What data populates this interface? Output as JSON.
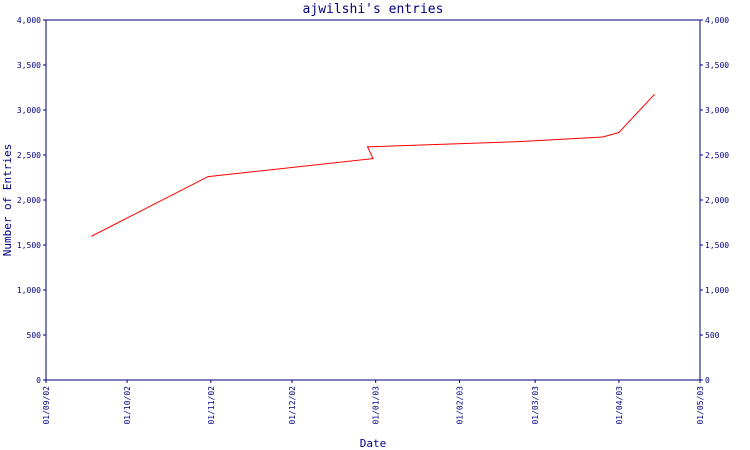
{
  "chart_data": {
    "type": "line",
    "title": "ajwilshi's entries",
    "xlabel": "Date",
    "ylabel": "Number of Entries",
    "ylim": [
      0,
      4000
    ],
    "y_ticks": [
      0,
      500,
      1000,
      1500,
      2000,
      2500,
      3000,
      3500,
      4000
    ],
    "y_tick_labels": [
      "0",
      "500",
      "1,000",
      "1,500",
      "2,000",
      "2,500",
      "3,000",
      "3,500",
      "4,000"
    ],
    "x_tick_labels": [
      "01/09/02",
      "01/10/02",
      "01/11/02",
      "01/12/02",
      "01/01/03",
      "01/02/03",
      "01/03/03",
      "01/04/03",
      "01/05/03"
    ],
    "grid": false,
    "series": [
      {
        "color": "#ff0000",
        "x": [
          "2002-09-18",
          "2002-10-31",
          "2002-12-31",
          "2002-12-29",
          "2003-02-24",
          "2003-03-26",
          "2003-04-01",
          "2003-04-14"
        ],
        "y": [
          1600,
          2260,
          2460,
          2590,
          2650,
          2700,
          2750,
          3170
        ]
      }
    ]
  }
}
